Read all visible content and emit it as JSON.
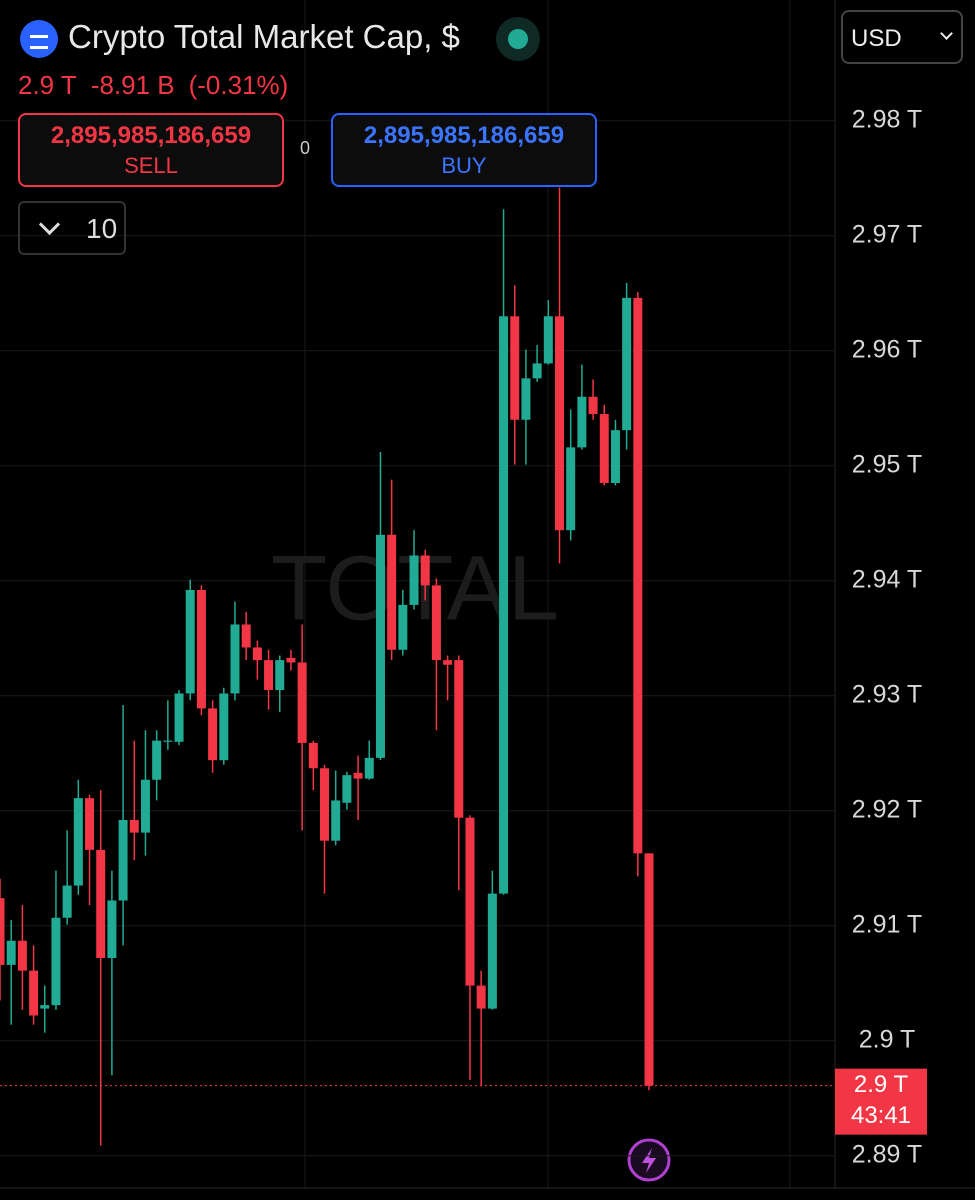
{
  "header": {
    "title": "Crypto Total Market Cap, $",
    "price": "2.9 T",
    "change": "-8.91 B",
    "change_pct": "(-0.31%)",
    "sell_price": "2,895,985,186,659",
    "sell_label": "SELL",
    "spread": "0",
    "buy_price": "2,895,985,186,659",
    "buy_label": "BUY",
    "quantity": "10",
    "currency": "USD"
  },
  "chart_data": {
    "type": "candlestick",
    "watermark": "TOTAL",
    "up_color": "#22ab94",
    "down_color": "#f23645",
    "grid": true,
    "ylim": [
      2.8872,
      2.9905
    ],
    "yticks": [
      {
        "value": 2.98,
        "label": "2.98 T"
      },
      {
        "value": 2.97,
        "label": "2.97 T"
      },
      {
        "value": 2.96,
        "label": "2.96 T"
      },
      {
        "value": 2.95,
        "label": "2.95 T"
      },
      {
        "value": 2.94,
        "label": "2.94 T"
      },
      {
        "value": 2.93,
        "label": "2.93 T"
      },
      {
        "value": 2.92,
        "label": "2.92 T"
      },
      {
        "value": 2.91,
        "label": "2.91 T"
      },
      {
        "value": 2.9,
        "label": "2.9 T"
      },
      {
        "value": 2.89,
        "label": "2.89 T"
      }
    ],
    "last_price_label": "2.9 T",
    "countdown": "43:41",
    "categories": [
      null,
      null,
      null,
      null,
      null,
      null,
      null,
      null,
      null,
      null,
      null,
      null,
      null,
      null,
      null,
      null,
      null,
      null,
      null,
      null,
      null,
      null,
      null,
      null,
      null,
      null,
      null,
      null,
      null,
      null,
      null,
      null,
      null,
      null,
      null,
      null,
      null,
      null,
      null,
      null,
      null,
      null,
      null,
      null,
      null,
      null,
      null,
      null,
      null,
      null,
      null,
      null,
      null,
      null,
      null,
      null,
      null,
      null,
      null
    ],
    "open": [
      2.9124,
      2.9066,
      2.9087,
      2.9061,
      2.9028,
      2.9031,
      2.9107,
      2.9135,
      2.9211,
      2.9166,
      2.9072,
      2.9122,
      2.9192,
      2.9181,
      2.9227,
      2.926,
      2.926,
      2.9302,
      2.9392,
      2.9289,
      2.9244,
      2.9302,
      2.9362,
      2.9342,
      2.9331,
      2.9305,
      2.9333,
      2.9329,
      2.9259,
      2.9237,
      2.9174,
      2.9207,
      2.9233,
      2.9228,
      2.9246,
      2.944,
      2.934,
      2.9379,
      2.9422,
      2.9396,
      2.9331,
      2.9331,
      2.9194,
      2.9048,
      2.9028,
      2.9128,
      2.963,
      2.954,
      2.9576,
      2.9589,
      2.963,
      2.9444,
      2.9516,
      2.956,
      2.9545,
      2.9485,
      2.9531,
      2.9646,
      2.9163
    ],
    "high": [
      2.9141,
      2.9105,
      2.9118,
      2.9083,
      2.9048,
      2.9148,
      2.9183,
      2.9227,
      2.9214,
      2.9218,
      2.9148,
      2.9292,
      2.9261,
      2.927,
      2.927,
      2.9296,
      2.9305,
      2.9401,
      2.9396,
      2.9296,
      2.9307,
      2.9382,
      2.9373,
      2.9348,
      2.934,
      2.9335,
      2.934,
      2.9362,
      2.9261,
      2.924,
      2.9235,
      2.9234,
      2.9248,
      2.9261,
      2.9512,
      2.9488,
      2.9392,
      2.9444,
      2.9427,
      2.9402,
      2.9335,
      2.9335,
      2.9196,
      2.9061,
      2.9148,
      2.9723,
      2.9657,
      2.9601,
      2.9605,
      2.9644,
      2.9742,
      2.9549,
      2.9588,
      2.9575,
      2.9553,
      2.954,
      2.9659,
      2.9651,
      2.9163
    ],
    "low": [
      2.9035,
      2.9014,
      2.9027,
      2.9014,
      2.9007,
      2.9027,
      2.9101,
      2.9127,
      2.9118,
      2.8909,
      2.897,
      2.9083,
      2.9157,
      2.9161,
      2.9209,
      2.9253,
      2.9257,
      2.9296,
      2.9283,
      2.9233,
      2.924,
      2.9296,
      2.9331,
      2.9314,
      2.9288,
      2.9286,
      2.9322,
      2.9183,
      2.9218,
      2.9128,
      2.917,
      2.9201,
      2.9192,
      2.9227,
      2.9244,
      2.9331,
      2.9335,
      2.9375,
      2.9383,
      2.927,
      2.9296,
      2.9131,
      2.8966,
      2.8961,
      2.9027,
      2.9127,
      2.9501,
      2.9501,
      2.9573,
      2.9588,
      2.9415,
      2.9435,
      2.9514,
      2.954,
      2.9483,
      2.9483,
      2.9514,
      2.9143,
      2.8957
    ],
    "close": [
      2.9066,
      2.9087,
      2.9061,
      2.9022,
      2.9031,
      2.9107,
      2.9135,
      2.9211,
      2.9166,
      2.9072,
      2.9122,
      2.9192,
      2.9181,
      2.9227,
      2.9261,
      2.9261,
      2.9302,
      2.9392,
      2.9289,
      2.9244,
      2.9302,
      2.9362,
      2.9342,
      2.9331,
      2.9305,
      2.9331,
      2.9329,
      2.9259,
      2.9237,
      2.9174,
      2.9209,
      2.9231,
      2.9228,
      2.9246,
      2.944,
      2.934,
      2.9379,
      2.9422,
      2.9396,
      2.9331,
      2.9327,
      2.9194,
      2.9048,
      2.9028,
      2.9128,
      2.963,
      2.954,
      2.9576,
      2.9589,
      2.963,
      2.9444,
      2.9516,
      2.956,
      2.9545,
      2.9485,
      2.9531,
      2.9646,
      2.9163,
      2.8961
    ]
  }
}
